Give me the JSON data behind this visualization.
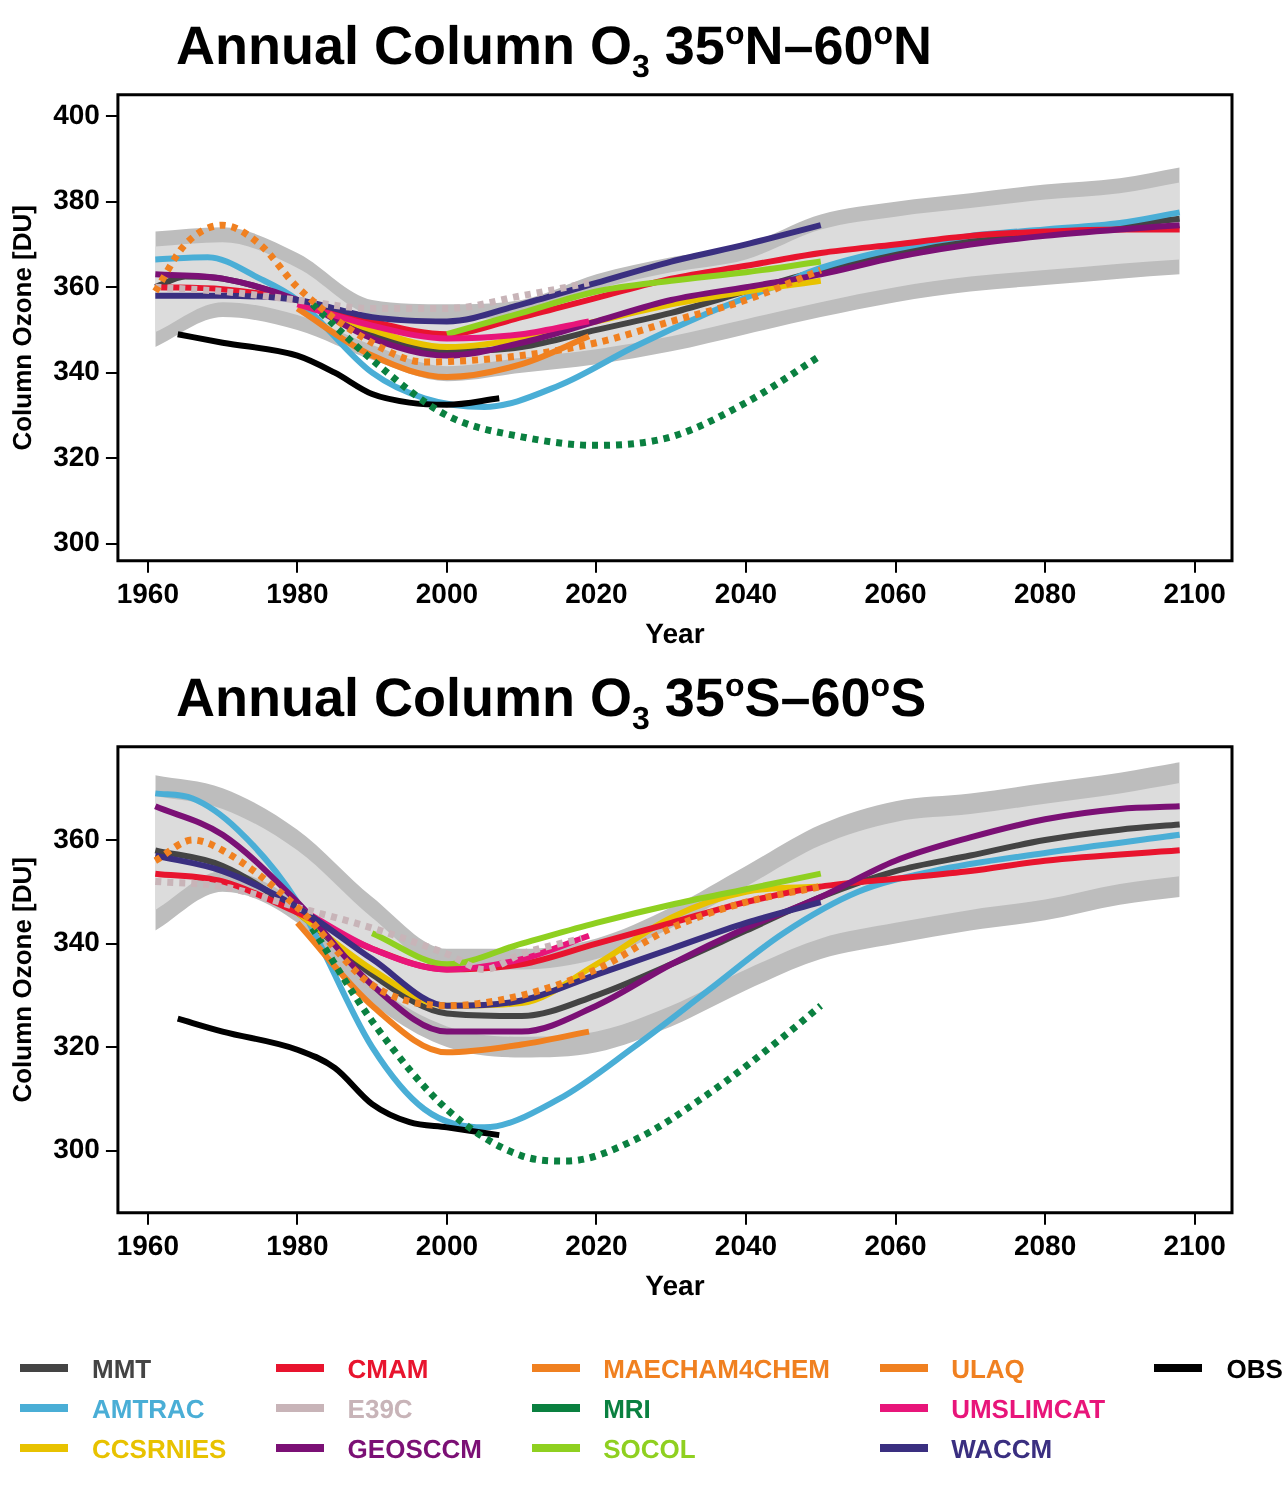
{
  "chart_data": [
    {
      "type": "line",
      "title": "Annual Column O$_{3}$ 35$^{o}$N–60$^{o}$N",
      "xlabel": "Year",
      "ylabel": "Column Ozone [DU]",
      "xlim": [
        1956,
        2105
      ],
      "xticks": [
        1960,
        1980,
        2000,
        2020,
        2040,
        2060,
        2080,
        2100
      ],
      "ylim": [
        296,
        405
      ],
      "yticks": [
        300,
        320,
        340,
        360,
        380,
        400
      ],
      "grid": false,
      "marker": "none",
      "legend": "bottom",
      "series": [
        {
          "name": "MMT",
          "color": "#444444",
          "x": [
            1961,
            1965,
            1970,
            1980,
            1990,
            2000,
            2010,
            2020,
            2030,
            2040,
            2050,
            2060,
            2070,
            2080,
            2090,
            2098
          ],
          "values": [
            360,
            362.5,
            362,
            357,
            349,
            345,
            346,
            350,
            354,
            359,
            364,
            368,
            371,
            373,
            374.5,
            376
          ]
        },
        {
          "name": "AMTRAC",
          "color": "#4aaed6",
          "x": [
            1961,
            1968,
            1975,
            1980,
            1990,
            1997,
            2005,
            2015,
            2025,
            2035,
            2045,
            2050,
            2060,
            2070,
            2080,
            2090,
            2098
          ],
          "values": [
            366.5,
            367,
            362,
            357,
            340,
            334,
            332,
            337,
            346,
            354,
            361,
            364.5,
            369,
            372,
            373.5,
            375,
            377.5
          ]
        },
        {
          "name": "CCSRNIES",
          "color": "#e8c200",
          "x": [
            1980,
            1990,
            2000,
            2010,
            2020,
            2030,
            2040,
            2050
          ],
          "values": [
            357,
            350,
            346,
            348,
            352,
            356,
            359,
            361.5
          ]
        },
        {
          "name": "CMAM",
          "color": "#e8142e",
          "x": [
            1961,
            1970,
            1980,
            1990,
            2000,
            2010,
            2020,
            2030,
            2040,
            2050,
            2060,
            2070,
            2080,
            2090,
            2098
          ],
          "values": [
            360,
            359.5,
            357,
            352,
            349,
            353,
            357.5,
            362,
            365,
            368,
            370,
            372,
            373,
            373.5,
            373.5
          ]
        },
        {
          "name": "E39C",
          "color": "#c8b4b8",
          "line_style": "dotted",
          "x": [
            1961,
            1970,
            1980,
            1990,
            2000,
            2010,
            2019
          ],
          "values": [
            360,
            359,
            357,
            355,
            355,
            358,
            361
          ]
        },
        {
          "name": "GEOSCCM",
          "color": "#7b1075",
          "x": [
            1961,
            1970,
            1980,
            1990,
            2000,
            2010,
            2020,
            2030,
            2040,
            2050,
            2060,
            2070,
            2080,
            2090,
            2098
          ],
          "values": [
            363,
            362,
            357,
            348,
            344,
            347,
            352,
            357,
            360,
            363,
            367,
            370,
            372,
            373.5,
            374.5
          ]
        },
        {
          "name": "MAECHAM4CHEM",
          "color": "#f08020",
          "x": [
            1980,
            1990,
            2000,
            2010,
            2019
          ],
          "values": [
            355,
            344,
            339,
            342,
            348.5
          ]
        },
        {
          "name": "MRI",
          "color": "#0a8040",
          "line_style": "dotted",
          "x": [
            1982,
            1990,
            2000,
            2010,
            2020,
            2030,
            2040,
            2050
          ],
          "values": [
            356,
            343,
            330,
            325,
            323,
            325,
            333,
            344
          ]
        },
        {
          "name": "SOCOL",
          "color": "#8fd020",
          "x": [
            2000,
            2010,
            2020,
            2030,
            2040,
            2050
          ],
          "values": [
            349,
            354,
            359,
            361.5,
            363.5,
            366
          ]
        },
        {
          "name": "ULAQ",
          "color": "#f08020",
          "line_style": "dotted",
          "x": [
            1961,
            1965,
            1970,
            1975,
            1980,
            1990,
            1997,
            2010,
            2020,
            2030,
            2040,
            2050
          ],
          "values": [
            359,
            370,
            374.5,
            370,
            360,
            347,
            342.5,
            344,
            347,
            352,
            357,
            364
          ]
        },
        {
          "name": "UMSLIMCAT",
          "color": "#e8157a",
          "x": [
            1980,
            1990,
            2000,
            2010,
            2019
          ],
          "values": [
            356,
            351,
            348,
            349,
            352
          ]
        },
        {
          "name": "WACCM",
          "color": "#3a2f80",
          "x": [
            1961,
            1970,
            1980,
            1990,
            2000,
            2010,
            2020,
            2030,
            2040,
            2050
          ],
          "values": [
            358,
            358,
            357,
            353,
            352,
            356,
            361,
            366,
            370,
            374.5
          ]
        },
        {
          "name": "OBS",
          "color": "#000000",
          "x": [
            1964,
            1970,
            1980,
            1985,
            1990,
            1995,
            2000,
            2007
          ],
          "values": [
            349,
            347,
            344,
            340,
            335,
            333,
            332.5,
            334
          ]
        },
        {
          "color": "#bdbdbd",
          "x": [
            1961,
            1970,
            1980,
            1990,
            2000,
            2010,
            2020,
            2030,
            2040,
            2050,
            2060,
            2070,
            2080,
            2090,
            2098
          ],
          "values": [
            null,
            null,
            null,
            null,
            null,
            null,
            null,
            null,
            null,
            null,
            null,
            null,
            null,
            null,
            null
          ],
          "upper": [
            373,
            374,
            368,
            357,
            356,
            357,
            363,
            367,
            370,
            377,
            380,
            382,
            384,
            385.5,
            388
          ],
          "lower": [
            346,
            353,
            350,
            343,
            338,
            340,
            342,
            345,
            349,
            353,
            356.5,
            359,
            360.5,
            362,
            363
          ]
        },
        {
          "color": "#dcdcdc",
          "x": [
            1961,
            1970,
            1980,
            1990,
            2000,
            2010,
            2020,
            2030,
            2040,
            2050,
            2060,
            2070,
            2080,
            2090,
            2098
          ],
          "values": [
            null,
            null,
            null,
            null,
            null,
            null,
            null,
            null,
            null,
            null,
            null,
            null,
            null,
            null,
            null
          ],
          "upper": [
            369.5,
            370.5,
            364.5,
            353.5,
            352.5,
            353.5,
            359.5,
            363.5,
            366.5,
            373.5,
            376.5,
            378.5,
            380.5,
            382,
            384.5
          ],
          "lower": [
            349.5,
            356.5,
            353.5,
            346.5,
            341.5,
            343.5,
            345.5,
            348.5,
            352.5,
            356.5,
            360,
            362.5,
            364,
            365.5,
            366.5
          ]
        }
      ]
    },
    {
      "type": "line",
      "title": "Annual Column O$_{3}$ 35$^{o}$S–60$^{o}$S",
      "xlabel": "Year",
      "ylabel": "Column Ozone [DU]",
      "xlim": [
        1956,
        2105
      ],
      "xticks": [
        1960,
        1980,
        2000,
        2020,
        2040,
        2060,
        2080,
        2100
      ],
      "ylim": [
        288,
        378
      ],
      "yticks": [
        300,
        320,
        340,
        360
      ],
      "grid": false,
      "marker": "none",
      "legend": "bottom",
      "series": [
        {
          "name": "MMT",
          "color": "#444444",
          "x": [
            1961,
            1970,
            1980,
            1990,
            2000,
            2010,
            2020,
            2030,
            2040,
            2050,
            2060,
            2070,
            2080,
            2090,
            2098
          ],
          "values": [
            358,
            355,
            346,
            334,
            326.5,
            326,
            330,
            336,
            342.5,
            349,
            354,
            357,
            360,
            362,
            363
          ]
        },
        {
          "name": "AMTRAC",
          "color": "#4aaed6",
          "x": [
            1961,
            1966,
            1972,
            1980,
            1990,
            1997,
            2005,
            2015,
            2025,
            2035,
            2045,
            2055,
            2065,
            2080,
            2098
          ],
          "values": [
            369,
            368,
            362,
            348,
            320,
            308,
            304.5,
            310,
            320,
            331,
            342,
            350,
            354,
            357.5,
            361
          ]
        },
        {
          "name": "CCSRNIES",
          "color": "#e8c200",
          "x": [
            1980,
            1990,
            2000,
            2010,
            2020,
            2030,
            2040,
            2050
          ],
          "values": [
            346,
            335,
            328,
            328.5,
            336,
            345,
            350,
            351
          ]
        },
        {
          "name": "CMAM",
          "color": "#e8142e",
          "x": [
            1961,
            1970,
            1980,
            1990,
            2000,
            2010,
            2020,
            2030,
            2040,
            2050,
            2060,
            2070,
            2080,
            2098
          ],
          "values": [
            353.5,
            352,
            346,
            339,
            335,
            336,
            340,
            344,
            348,
            351,
            352.5,
            354,
            356,
            358
          ]
        },
        {
          "name": "E39C",
          "color": "#c8b4b8",
          "line_style": "dotted",
          "x": [
            1961,
            1970,
            1980,
            1990,
            2000,
            2005,
            2010,
            2018
          ],
          "values": [
            352,
            351,
            347,
            343,
            338,
            335,
            338,
            341
          ]
        },
        {
          "name": "GEOSCCM",
          "color": "#7b1075",
          "x": [
            1961,
            1970,
            1980,
            1990,
            2000,
            2010,
            2020,
            2030,
            2040,
            2050,
            2060,
            2070,
            2080,
            2090,
            2098
          ],
          "values": [
            366.5,
            361,
            348,
            332,
            323,
            323,
            328,
            336,
            343,
            349,
            356,
            360.5,
            364,
            366,
            366.5
          ]
        },
        {
          "name": "MAECHAM4CHEM",
          "color": "#f08020",
          "x": [
            1980,
            1990,
            2000,
            2010,
            2019
          ],
          "values": [
            344,
            328,
            319,
            320.5,
            323
          ]
        },
        {
          "name": "MRI",
          "color": "#0a8040",
          "line_style": "dotted",
          "x": [
            1982,
            1990,
            2000,
            2010,
            2016,
            2025,
            2035,
            2045,
            2050
          ],
          "values": [
            343,
            325,
            308,
            299,
            298,
            302,
            311,
            322,
            328
          ]
        },
        {
          "name": "SOCOL",
          "color": "#8fd020",
          "x": [
            1990,
            2000,
            2010,
            2020,
            2030,
            2040,
            2050
          ],
          "values": [
            342,
            336,
            340,
            344,
            347.5,
            350.5,
            353.5
          ]
        },
        {
          "name": "ULAQ",
          "color": "#f08020",
          "line_style": "dotted",
          "x": [
            1961,
            1966,
            1970,
            1980,
            1990,
            2000,
            2010,
            2020,
            2030,
            2040,
            2050
          ],
          "values": [
            356,
            360,
            358,
            347,
            332,
            328,
            330,
            335,
            343,
            348,
            351
          ]
        },
        {
          "name": "UMSLIMCAT",
          "color": "#e8157a",
          "x": [
            1980,
            1990,
            2000,
            2010,
            2019
          ],
          "values": [
            347,
            339,
            335,
            337,
            341.5
          ]
        },
        {
          "name": "WACCM",
          "color": "#3a2f80",
          "x": [
            1961,
            1970,
            1980,
            1990,
            2000,
            2010,
            2020,
            2030,
            2040,
            2050
          ],
          "values": [
            357,
            354,
            347,
            337,
            328,
            329,
            334,
            339,
            344,
            348
          ]
        },
        {
          "name": "OBS",
          "color": "#000000",
          "x": [
            1964,
            1970,
            1980,
            1985,
            1990,
            1995,
            2000,
            2007
          ],
          "values": [
            325.5,
            323,
            319.5,
            316,
            309,
            305.5,
            304.5,
            303
          ]
        },
        {
          "color": "#bdbdbd",
          "x": [
            1961,
            1970,
            1980,
            1990,
            2000,
            2010,
            2020,
            2030,
            2040,
            2050,
            2060,
            2070,
            2080,
            2090,
            2098
          ],
          "values": [
            null,
            null,
            null,
            null,
            null,
            null,
            null,
            null,
            null,
            null,
            null,
            null,
            null,
            null,
            null
          ],
          "upper": [
            372.5,
            370,
            362,
            349,
            339,
            339,
            341,
            347,
            355,
            363,
            367.5,
            369,
            371,
            373,
            375
          ],
          "lower": [
            342.5,
            350,
            344,
            328.5,
            320,
            318,
            319,
            324,
            331,
            337,
            340,
            342.5,
            344.5,
            347.5,
            349
          ]
        },
        {
          "color": "#dcdcdc",
          "x": [
            1961,
            1970,
            1980,
            1990,
            2000,
            2010,
            2020,
            2030,
            2040,
            2050,
            2060,
            2070,
            2080,
            2090,
            2098
          ],
          "values": [
            null,
            null,
            null,
            null,
            null,
            null,
            null,
            null,
            null,
            null,
            null,
            null,
            null,
            null,
            null
          ],
          "upper": [
            368.5,
            366,
            358,
            345,
            335,
            335,
            337,
            343,
            351,
            359,
            363.5,
            365,
            367,
            369,
            371
          ],
          "lower": [
            346.5,
            354,
            348,
            332.5,
            324,
            322,
            323,
            328,
            335,
            341,
            344,
            346.5,
            348.5,
            351.5,
            353
          ]
        }
      ]
    }
  ]
}
